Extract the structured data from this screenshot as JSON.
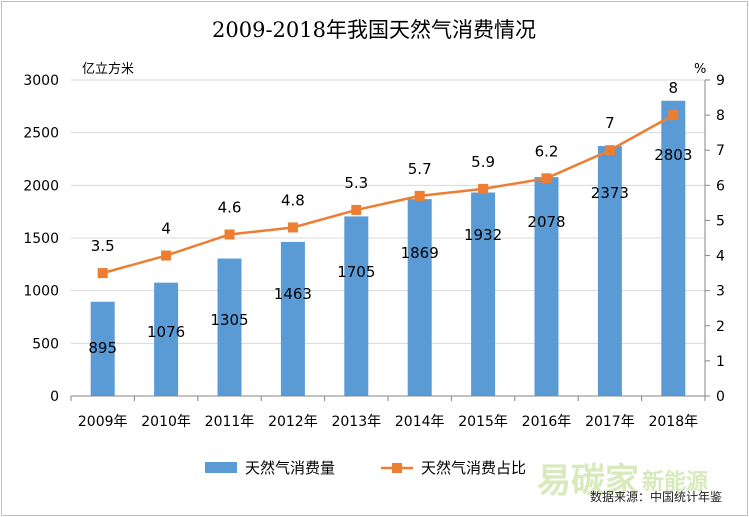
{
  "chart_data": {
    "type": "bar",
    "title": "2009-2018年我国天然气消费情况",
    "categories": [
      "2009年",
      "2010年",
      "2011年",
      "2012年",
      "2013年",
      "2014年",
      "2015年",
      "2016年",
      "2017年",
      "2018年"
    ],
    "series": [
      {
        "name": "天然气消费量",
        "type": "bar",
        "axis": "left",
        "color": "#5b9bd5",
        "values": [
          895,
          1076,
          1305,
          1463,
          1705,
          1869,
          1932,
          2078,
          2373,
          2803
        ],
        "labels": [
          "895",
          "1076",
          "1305",
          "1463",
          "1705",
          "1869",
          "1932",
          "2078",
          "2373",
          "2803"
        ]
      },
      {
        "name": "天然气消费占比",
        "type": "line",
        "axis": "right",
        "color": "#ed7d31",
        "values": [
          3.5,
          4,
          4.6,
          4.8,
          5.3,
          5.7,
          5.9,
          6.2,
          7,
          8
        ],
        "labels": [
          "3.5",
          "4",
          "4.6",
          "4.8",
          "5.3",
          "5.7",
          "5.9",
          "6.2",
          "7",
          "8"
        ]
      }
    ],
    "y_left": {
      "label": "亿立方米",
      "ylim": [
        0,
        3000
      ],
      "ticks": [
        "0",
        "500",
        "1000",
        "1500",
        "2000",
        "2500",
        "3000"
      ]
    },
    "y_right": {
      "label": "%",
      "ylim": [
        0,
        9
      ],
      "ticks": [
        "0",
        "1",
        "2",
        "3",
        "4",
        "5",
        "6",
        "7",
        "8",
        "9"
      ]
    },
    "grid": true,
    "legend_position": "bottom",
    "source": "数据来源：中国统计年鉴",
    "watermark": "易碳家",
    "watermark_sub": "新能源"
  }
}
